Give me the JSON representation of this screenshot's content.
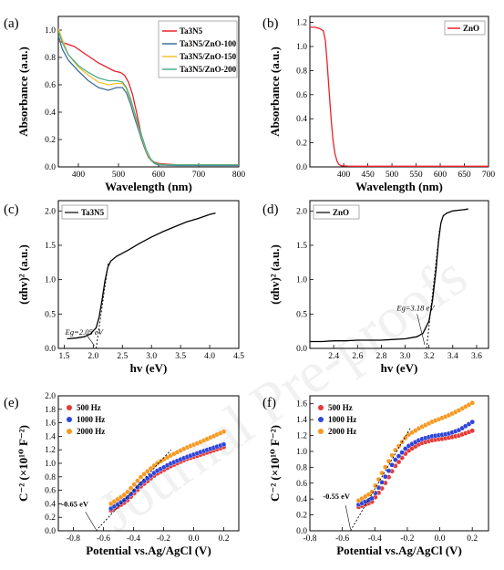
{
  "colors": {
    "red": "#e8222a",
    "blue": "#3f6f9a",
    "yellow": "#f2c12e",
    "green": "#4cae8c",
    "black": "#000000",
    "red_marker": "#e53935",
    "blue_marker": "#2f45d8",
    "orange_marker": "#f59a23"
  },
  "watermark": "Journal Pre-proofs",
  "chart_data": [
    {
      "panel": "(a)",
      "type": "line",
      "xlabel": "Wavelength (nm)",
      "ylabel": "Absorbance (a.u.)",
      "xlim": [
        350,
        800
      ],
      "ylim": [
        0,
        1.1
      ],
      "xticks": [
        400,
        500,
        600,
        700,
        800
      ],
      "yticks": [
        0.0,
        0.2,
        0.4,
        0.6,
        0.8,
        1.0
      ],
      "legend": "top-right",
      "series": [
        {
          "name": "Ta3N5",
          "color_key": "red",
          "x": [
            350,
            370,
            390,
            410,
            430,
            450,
            470,
            490,
            505,
            515,
            525,
            535,
            545,
            555,
            565,
            575,
            585,
            600,
            620,
            650,
            700,
            750,
            800
          ],
          "y": [
            0.92,
            0.9,
            0.88,
            0.84,
            0.8,
            0.76,
            0.73,
            0.7,
            0.69,
            0.67,
            0.62,
            0.53,
            0.4,
            0.26,
            0.14,
            0.07,
            0.04,
            0.025,
            0.02,
            0.015,
            0.015,
            0.015,
            0.015
          ]
        },
        {
          "name": "Ta3N5/ZnO-100",
          "color_key": "blue",
          "x": [
            350,
            360,
            375,
            400,
            425,
            450,
            475,
            495,
            510,
            520,
            530,
            540,
            550,
            560,
            570,
            580,
            590,
            600,
            620,
            650,
            700,
            750,
            800
          ],
          "y": [
            0.96,
            0.86,
            0.78,
            0.7,
            0.63,
            0.58,
            0.56,
            0.58,
            0.58,
            0.54,
            0.46,
            0.36,
            0.27,
            0.18,
            0.1,
            0.05,
            0.025,
            0.015,
            0.012,
            0.01,
            0.01,
            0.01,
            0.01
          ]
        },
        {
          "name": "Ta3N5/ZnO-150",
          "color_key": "yellow",
          "x": [
            350,
            360,
            375,
            400,
            425,
            450,
            475,
            495,
            510,
            520,
            530,
            540,
            550,
            560,
            570,
            580,
            590,
            600,
            620,
            650,
            700,
            750,
            800
          ],
          "y": [
            1.01,
            0.93,
            0.82,
            0.73,
            0.67,
            0.62,
            0.6,
            0.61,
            0.61,
            0.57,
            0.49,
            0.39,
            0.29,
            0.2,
            0.11,
            0.055,
            0.03,
            0.02,
            0.015,
            0.015,
            0.015,
            0.015,
            0.015
          ]
        },
        {
          "name": "Ta3N5/ZnO-200",
          "color_key": "green",
          "x": [
            350,
            360,
            375,
            400,
            425,
            450,
            475,
            495,
            510,
            520,
            530,
            540,
            550,
            560,
            570,
            580,
            590,
            600,
            620,
            650,
            700,
            750,
            800
          ],
          "y": [
            0.99,
            0.91,
            0.82,
            0.74,
            0.69,
            0.65,
            0.63,
            0.63,
            0.62,
            0.58,
            0.5,
            0.4,
            0.3,
            0.21,
            0.12,
            0.06,
            0.03,
            0.02,
            0.015,
            0.015,
            0.015,
            0.015,
            0.015
          ]
        }
      ]
    },
    {
      "panel": "(b)",
      "type": "line",
      "xlabel": "Wavelength (nm)",
      "ylabel": "Absorbance (a.u.)",
      "xlim": [
        330,
        700
      ],
      "ylim": [
        0,
        1.25
      ],
      "xticks": [
        400,
        450,
        500,
        550,
        600,
        650,
        700
      ],
      "yticks": [
        0.0,
        0.2,
        0.4,
        0.6,
        0.8,
        1.0,
        1.2
      ],
      "legend": "top-right",
      "series": [
        {
          "name": "ZnO",
          "color_key": "red",
          "x": [
            330,
            340,
            350,
            358,
            362,
            366,
            370,
            374,
            378,
            382,
            386,
            390,
            395,
            400,
            410,
            430,
            500,
            600,
            700
          ],
          "y": [
            1.16,
            1.16,
            1.15,
            1.13,
            1.05,
            0.85,
            0.62,
            0.4,
            0.22,
            0.11,
            0.05,
            0.02,
            0.01,
            0.008,
            0.006,
            0.005,
            0.005,
            0.005,
            0.005
          ]
        }
      ]
    },
    {
      "panel": "(c)",
      "type": "line",
      "xlabel": "hv (eV)",
      "ylabel": "(αhv)² (a.u.)",
      "xlim": [
        1.4,
        4.5
      ],
      "ylim": [
        0,
        2.15
      ],
      "xticks": [
        1.5,
        2.0,
        2.5,
        3.0,
        3.5,
        4.0,
        4.5
      ],
      "yticks": [
        0.0,
        0.5,
        1.0,
        1.5,
        2.0
      ],
      "legend": "top-left",
      "annotation": {
        "text": "Eg=2.05 eV",
        "value": 2.05
      },
      "series": [
        {
          "name": "Ta3N5",
          "color_key": "black",
          "x": [
            1.55,
            1.7,
            1.85,
            1.95,
            2.05,
            2.1,
            2.15,
            2.2,
            2.25,
            2.3,
            2.4,
            2.6,
            2.8,
            3.0,
            3.2,
            3.4,
            3.6,
            3.8,
            4.0,
            4.1
          ],
          "y": [
            0.14,
            0.15,
            0.17,
            0.21,
            0.3,
            0.45,
            0.7,
            0.98,
            1.18,
            1.27,
            1.34,
            1.43,
            1.53,
            1.62,
            1.7,
            1.77,
            1.84,
            1.89,
            1.95,
            1.97
          ]
        }
      ]
    },
    {
      "panel": "(d)",
      "type": "line",
      "xlabel": "hv (eV)",
      "ylabel": "(αhv)² (a.u.)",
      "xlim": [
        2.2,
        3.7
      ],
      "ylim": [
        0,
        2.15
      ],
      "xticks": [
        2.4,
        2.6,
        2.8,
        3.0,
        3.2,
        3.4,
        3.6
      ],
      "yticks": [
        0.0,
        0.5,
        1.0,
        1.5,
        2.0
      ],
      "legend": "top-left",
      "annotation": {
        "text": "Eg=3.18 eV",
        "value": 3.18
      },
      "series": [
        {
          "name": "ZnO",
          "color_key": "black",
          "x": [
            2.2,
            2.3,
            2.4,
            2.5,
            2.6,
            2.7,
            2.8,
            2.9,
            3.0,
            3.1,
            3.15,
            3.2,
            3.23,
            3.26,
            3.28,
            3.3,
            3.32,
            3.35,
            3.4,
            3.45,
            3.5,
            3.53
          ],
          "y": [
            0.1,
            0.1,
            0.11,
            0.11,
            0.12,
            0.12,
            0.12,
            0.13,
            0.14,
            0.17,
            0.22,
            0.4,
            0.7,
            1.15,
            1.55,
            1.82,
            1.93,
            1.97,
            2.0,
            2.01,
            2.02,
            2.03
          ]
        }
      ]
    },
    {
      "panel": "(e)",
      "type": "scatter",
      "xlabel": "Potential vs.Ag/AgCl (V)",
      "ylabel": "C⁻² (×10¹⁰ F⁻²)",
      "xlim": [
        -0.9,
        0.3
      ],
      "ylim": [
        0,
        2.0
      ],
      "xticks": [
        -0.8,
        -0.6,
        -0.4,
        -0.2,
        0.0,
        0.2
      ],
      "yticks": [
        0.0,
        0.2,
        0.4,
        0.6,
        0.8,
        1.0,
        1.2,
        1.4,
        1.6,
        1.8,
        2.0
      ],
      "legend": "top-left",
      "annotation": {
        "text": "-0.65 eV",
        "value": -0.65
      },
      "series": [
        {
          "name": "500 Hz",
          "color_key": "red_marker",
          "x_start": -0.55,
          "x_end": 0.2,
          "y_at": [
            [
              -0.55,
              0.3
            ],
            [
              -0.45,
              0.43
            ],
            [
              -0.35,
              0.66
            ],
            [
              -0.25,
              0.84
            ],
            [
              -0.15,
              0.96
            ],
            [
              -0.05,
              1.06
            ],
            [
              0.05,
              1.13
            ],
            [
              0.2,
              1.24
            ]
          ]
        },
        {
          "name": "1000 Hz",
          "color_key": "blue_marker",
          "x_start": -0.55,
          "x_end": 0.2,
          "y_at": [
            [
              -0.55,
              0.33
            ],
            [
              -0.45,
              0.47
            ],
            [
              -0.35,
              0.7
            ],
            [
              -0.25,
              0.88
            ],
            [
              -0.15,
              1.0
            ],
            [
              -0.05,
              1.09
            ],
            [
              0.05,
              1.17
            ],
            [
              0.2,
              1.28
            ]
          ]
        },
        {
          "name": "2000 Hz",
          "color_key": "orange_marker",
          "x_start": -0.55,
          "x_end": 0.2,
          "y_at": [
            [
              -0.55,
              0.4
            ],
            [
              -0.45,
              0.55
            ],
            [
              -0.35,
              0.8
            ],
            [
              -0.25,
              0.99
            ],
            [
              -0.15,
              1.12
            ],
            [
              -0.05,
              1.23
            ],
            [
              0.05,
              1.32
            ],
            [
              0.2,
              1.47
            ]
          ]
        }
      ]
    },
    {
      "panel": "(f)",
      "type": "scatter",
      "xlabel": "Potential vs.Ag/AgCl (V)",
      "ylabel": "C⁻² (×10¹⁰ F⁻²)",
      "xlim": [
        -0.8,
        0.3
      ],
      "ylim": [
        0,
        1.7
      ],
      "xticks": [
        -0.8,
        -0.6,
        -0.4,
        -0.2,
        0.0,
        0.2
      ],
      "yticks": [
        0.0,
        0.2,
        0.4,
        0.6,
        0.8,
        1.0,
        1.2,
        1.4,
        1.6
      ],
      "legend": "top-left",
      "annotation": {
        "text": "-0.55 eV",
        "value": -0.55
      },
      "series": [
        {
          "name": "500 Hz",
          "color_key": "red_marker",
          "x_start": -0.5,
          "x_end": 0.2,
          "y_at": [
            [
              -0.5,
              0.3
            ],
            [
              -0.42,
              0.36
            ],
            [
              -0.35,
              0.55
            ],
            [
              -0.28,
              0.8
            ],
            [
              -0.2,
              1.0
            ],
            [
              -0.12,
              1.1
            ],
            [
              -0.05,
              1.14
            ],
            [
              0.05,
              1.17
            ],
            [
              0.12,
              1.2
            ],
            [
              0.2,
              1.26
            ]
          ]
        },
        {
          "name": "1000 Hz",
          "color_key": "blue_marker",
          "x_start": -0.5,
          "x_end": 0.2,
          "y_at": [
            [
              -0.5,
              0.33
            ],
            [
              -0.42,
              0.4
            ],
            [
              -0.35,
              0.63
            ],
            [
              -0.28,
              0.88
            ],
            [
              -0.2,
              1.06
            ],
            [
              -0.12,
              1.15
            ],
            [
              -0.05,
              1.19
            ],
            [
              0.05,
              1.22
            ],
            [
              0.12,
              1.27
            ],
            [
              0.2,
              1.37
            ]
          ]
        },
        {
          "name": "2000 Hz",
          "color_key": "orange_marker",
          "x_start": -0.5,
          "x_end": 0.2,
          "y_at": [
            [
              -0.5,
              0.38
            ],
            [
              -0.42,
              0.48
            ],
            [
              -0.35,
              0.75
            ],
            [
              -0.28,
              1.0
            ],
            [
              -0.2,
              1.2
            ],
            [
              -0.12,
              1.3
            ],
            [
              -0.05,
              1.37
            ],
            [
              0.05,
              1.45
            ],
            [
              0.12,
              1.52
            ],
            [
              0.2,
              1.61
            ]
          ]
        }
      ]
    }
  ]
}
